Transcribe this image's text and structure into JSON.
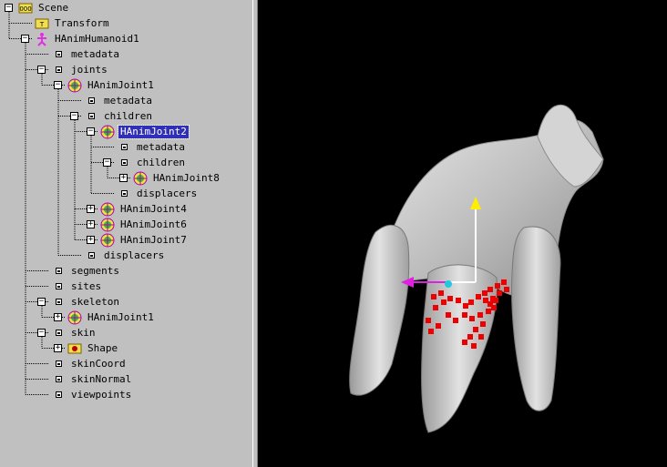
{
  "tree": {
    "nodes": [
      {
        "label": "Scene",
        "icon": "scene-icon",
        "expander": "minus"
      },
      {
        "label": "Transform",
        "icon": "transform-icon",
        "expander": null
      },
      {
        "label": "HAnimHumanoid1",
        "icon": "humanoid-icon",
        "expander": "minus"
      },
      {
        "label": "metadata",
        "icon": "field-icon",
        "expander": null
      },
      {
        "label": "joints",
        "icon": "field-icon",
        "expander": "minus"
      },
      {
        "label": "HAnimJoint1",
        "icon": "joint-icon",
        "expander": "minus"
      },
      {
        "label": "metadata",
        "icon": "field-icon",
        "expander": null
      },
      {
        "label": "children",
        "icon": "field-icon",
        "expander": "minus"
      },
      {
        "label": "HAnimJoint2",
        "icon": "joint-icon",
        "expander": "minus",
        "selected": true
      },
      {
        "label": "metadata",
        "icon": "field-icon",
        "expander": null
      },
      {
        "label": "children",
        "icon": "field-icon",
        "expander": "minus"
      },
      {
        "label": "HAnimJoint8",
        "icon": "joint-icon",
        "expander": "plus"
      },
      {
        "label": "displacers",
        "icon": "field-icon",
        "expander": null
      },
      {
        "label": "HAnimJoint4",
        "icon": "joint-icon",
        "expander": "plus"
      },
      {
        "label": "HAnimJoint6",
        "icon": "joint-icon",
        "expander": "plus"
      },
      {
        "label": "HAnimJoint7",
        "icon": "joint-icon",
        "expander": "plus"
      },
      {
        "label": "displacers",
        "icon": "field-icon",
        "expander": null
      },
      {
        "label": "segments",
        "icon": "field-icon",
        "expander": null
      },
      {
        "label": "sites",
        "icon": "field-icon",
        "expander": null
      },
      {
        "label": "skeleton",
        "icon": "field-icon",
        "expander": "minus"
      },
      {
        "label": "HAnimJoint1",
        "icon": "joint-icon",
        "expander": "plus"
      },
      {
        "label": "skin",
        "icon": "field-icon",
        "expander": "minus"
      },
      {
        "label": "Shape",
        "icon": "shape-icon",
        "expander": "plus"
      },
      {
        "label": "skinCoord",
        "icon": "field-icon",
        "expander": null
      },
      {
        "label": "skinNormal",
        "icon": "field-icon",
        "expander": null
      },
      {
        "label": "viewpoints",
        "icon": "field-icon",
        "expander": null
      }
    ]
  },
  "viewport": {
    "background": "#000000",
    "model_color": "#c8c8c8",
    "axis_colors": {
      "y": "#ffee00",
      "x": "#e020e0",
      "center": "#20c8e0"
    },
    "point_color": "#ee0000"
  }
}
